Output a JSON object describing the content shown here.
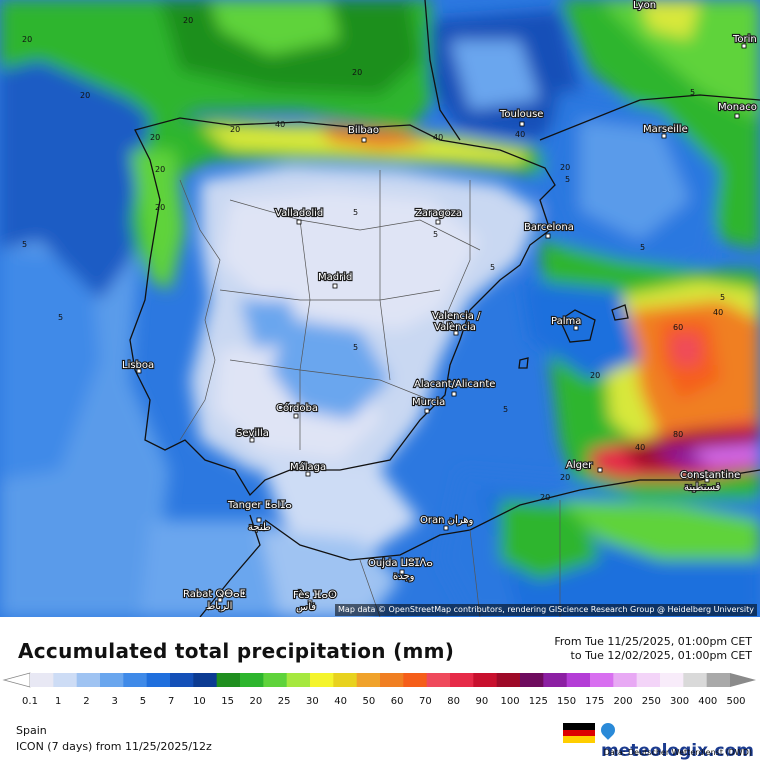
{
  "title": "Accumulated total precipitation (mm)",
  "period": {
    "from": "From Tue 11/25/2025, 01:00pm CET",
    "to": "to Tue 12/02/2025, 01:00pm CET"
  },
  "region": "Spain",
  "model": "ICON (7 days)  from  11/25/2025/12z",
  "brand": "meteologix.com",
  "source": "Data: Deutscher Wetterdienst  (DWD)",
  "attribution": "Map data © OpenStreetMap contributors, rendering GIScience Research Group @ Heidelberg University",
  "legend": {
    "ticks": [
      "0.1",
      "1",
      "2",
      "3",
      "5",
      "7",
      "10",
      "15",
      "20",
      "25",
      "30",
      "40",
      "50",
      "60",
      "70",
      "80",
      "90",
      "100",
      "125",
      "150",
      "175",
      "200",
      "250",
      "300",
      "400",
      "500"
    ],
    "colors": [
      "#e8e8f4",
      "#cddcf5",
      "#9fc3f2",
      "#6aa6ee",
      "#3f8ae8",
      "#1f6fdd",
      "#1450b8",
      "#0c3b92",
      "#1f8f1f",
      "#2db52d",
      "#5fd33b",
      "#a6e83f",
      "#f4f42c",
      "#e8d21e",
      "#f0a22a",
      "#f07f22",
      "#f55e1a",
      "#ef4a5c",
      "#e62a48",
      "#c8102e",
      "#9e0a28",
      "#6e0b5e",
      "#8c1fa3",
      "#b43dd6",
      "#d86ff0",
      "#e8a9f4",
      "#f3d4f8",
      "#f8ecfa",
      "#d9d9d9",
      "#a9a9a9"
    ]
  },
  "cities": [
    {
      "name": "Lyon"
    },
    {
      "name": "Torin"
    },
    {
      "name": "Monaco"
    },
    {
      "name": "Marseille"
    },
    {
      "name": "Toulouse"
    },
    {
      "name": "Bilbao"
    },
    {
      "name": "Valladolid"
    },
    {
      "name": "Zaragoza"
    },
    {
      "name": "Barcelona"
    },
    {
      "name": "Madrid"
    },
    {
      "name": "Valencia /\nValència"
    },
    {
      "name": "Palma"
    },
    {
      "name": "Lisboa"
    },
    {
      "name": "Alacant/Alicante"
    },
    {
      "name": "Murcia"
    },
    {
      "name": "Córdoba"
    },
    {
      "name": "Sevilla"
    },
    {
      "name": "Málaga"
    },
    {
      "name": "Tanger ⵟⴰⵏⵊⴰ"
    },
    {
      "name": "طنجة"
    },
    {
      "name": "Oran وهران"
    },
    {
      "name": "Alger"
    },
    {
      "name": "Constantine"
    },
    {
      "name": "قسنطينة"
    },
    {
      "name": "Oujda ⵡⵓⵊⴷⴰ"
    },
    {
      "name": "وجدة"
    },
    {
      "name": "Rabat ⵕⴱⴰⵟ"
    },
    {
      "name": "الرباط"
    },
    {
      "name": "Fès ⴼⴰⵙ"
    },
    {
      "name": "فاس"
    }
  ],
  "isolines": [
    "20",
    "20",
    "20",
    "20",
    "20",
    "20",
    "40",
    "40",
    "40",
    "20",
    "20",
    "20",
    "5",
    "5",
    "5",
    "5",
    "5",
    "5",
    "5",
    "5",
    "5",
    "5",
    "5",
    "5",
    "20",
    "40",
    "60",
    "80",
    "40",
    "20",
    "20"
  ]
}
